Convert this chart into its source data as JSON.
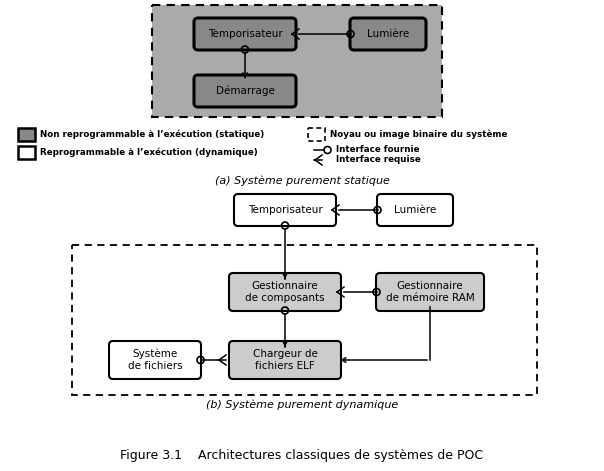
{
  "title": "Figure 3.1    Architectures classiques de systèmes de POC",
  "subtitle_a": "(a) Système purement statique",
  "subtitle_b": "(b) Système purement dynamique",
  "legend_static": "Non reprogrammable à l’exécution (statique)",
  "legend_dynamic": "Reprogrammable à l’exécution (dynamique)",
  "legend_kernel": "Noyau ou image binaire du système",
  "legend_provided": "Interface fournie",
  "legend_required": "Interface requise",
  "bg_color": "#ffffff"
}
